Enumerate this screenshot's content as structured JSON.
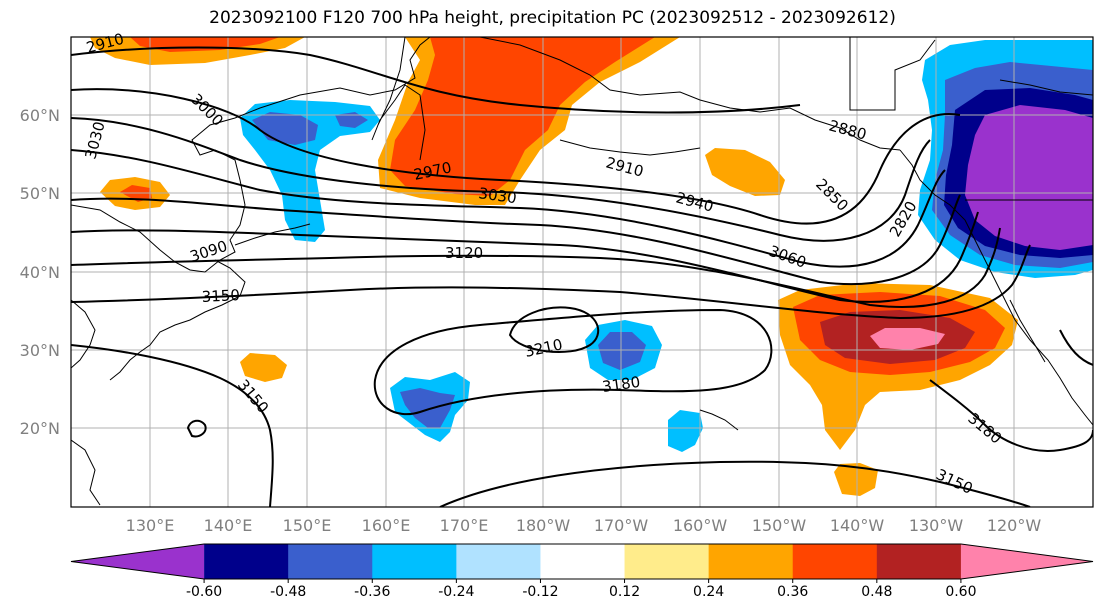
{
  "title": "2023092100 F120 700 hPa height, precipitation PC (2023092512 - 2023092612)",
  "lat_labels": [
    "60°N",
    "50°N",
    "40°N",
    "30°N",
    "20°N"
  ],
  "lon_labels": [
    "130°E",
    "140°E",
    "150°E",
    "160°E",
    "170°E",
    "180°W",
    "170°W",
    "160°W",
    "150°W",
    "140°W",
    "130°W",
    "120°W"
  ],
  "colorbar": {
    "colors": [
      "#9a32cd",
      "#00008b",
      "#3a5fcd",
      "#00bfff",
      "#b0e2ff",
      "#ffffff",
      "#ffec8b",
      "#ffa500",
      "#ff4500",
      "#b22222",
      "#ff82ab"
    ],
    "ticks": [
      "-0.60",
      "-0.48",
      "-0.36",
      "-0.24",
      "-0.12",
      "0.12",
      "0.24",
      "0.36",
      "0.48",
      "0.60"
    ]
  },
  "contour_labels": [
    {
      "text": "2910",
      "id": "c1"
    },
    {
      "text": "3000",
      "id": "c2"
    },
    {
      "text": "3030",
      "id": "c3"
    },
    {
      "text": "2970",
      "id": "c4"
    },
    {
      "text": "3030",
      "id": "c5"
    },
    {
      "text": "2910",
      "id": "c6"
    },
    {
      "text": "2940",
      "id": "c7"
    },
    {
      "text": "2880",
      "id": "c8"
    },
    {
      "text": "2850",
      "id": "c9"
    },
    {
      "text": "2820",
      "id": "c10"
    },
    {
      "text": "3090",
      "id": "c11"
    },
    {
      "text": "3120",
      "id": "c12"
    },
    {
      "text": "3060",
      "id": "c13"
    },
    {
      "text": "3150",
      "id": "c14"
    },
    {
      "text": "3210",
      "id": "c15"
    },
    {
      "text": "3180",
      "id": "c16"
    },
    {
      "text": "3150",
      "id": "c17"
    },
    {
      "text": "3180",
      "id": "c18"
    },
    {
      "text": "3150",
      "id": "c19"
    }
  ]
}
